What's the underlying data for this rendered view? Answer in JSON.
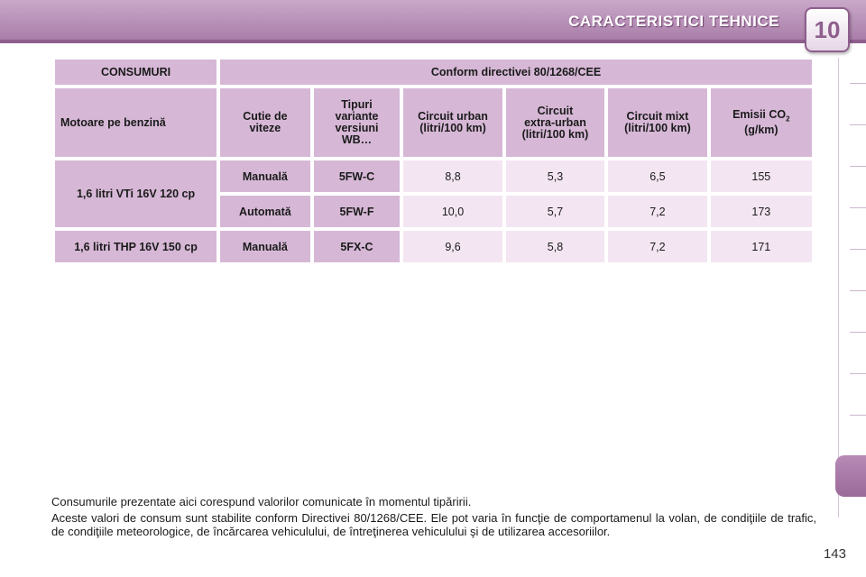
{
  "header": {
    "title": "CARACTERISTICI TEHNICE",
    "chapter": "10"
  },
  "table": {
    "title_left": "CONSUMURI",
    "title_right": "Conform directivei 80/1268/CEE",
    "columns": {
      "engine": "Motoare pe benzină",
      "gearbox_1": "Cutie de",
      "gearbox_2": "viteze",
      "types_1": "Tipuri",
      "types_2": "variante",
      "types_3": "versiuni",
      "types_4": "WB…",
      "urban_1": "Circuit urban",
      "urban_2": "(litri/100 km)",
      "extra_1": "Circuit",
      "extra_2": "extra-urban",
      "extra_3": "(litri/100 km)",
      "mixed_1": "Circuit mixt",
      "mixed_2": "(litri/100 km)",
      "co2_1": "Emisii CO",
      "co2_sub": "2",
      "co2_2": "(g/km)"
    },
    "engines": [
      "1,6 litri VTi 16V 120 cp",
      "1,6 litri THP 16V 150 cp"
    ],
    "rows": [
      {
        "gearbox": "Manuală",
        "type": "5FW-C",
        "urban": "8,8",
        "extra": "5,3",
        "mixed": "6,5",
        "co2": "155"
      },
      {
        "gearbox": "Automată",
        "type": "5FW-F",
        "urban": "10,0",
        "extra": "5,7",
        "mixed": "7,2",
        "co2": "173"
      },
      {
        "gearbox": "Manuală",
        "type": "5FX-C",
        "urban": "9,6",
        "extra": "5,8",
        "mixed": "7,2",
        "co2": "171"
      }
    ]
  },
  "notes": {
    "line1": "Consumurile prezentate aici corespund valorilor comunicate în momentul tipăririi.",
    "line2": "Aceste valori de consum sunt stabilite conform Directivei 80/1268/CEE. Ele pot varia în funcţie de comportamenul la volan, de condiţiile de trafic, de condiţiile meteorologice, de încărcarea vehiculului, de întreţinerea vehiculului şi de utilizarea accesoriilor."
  },
  "page_number": "143"
}
